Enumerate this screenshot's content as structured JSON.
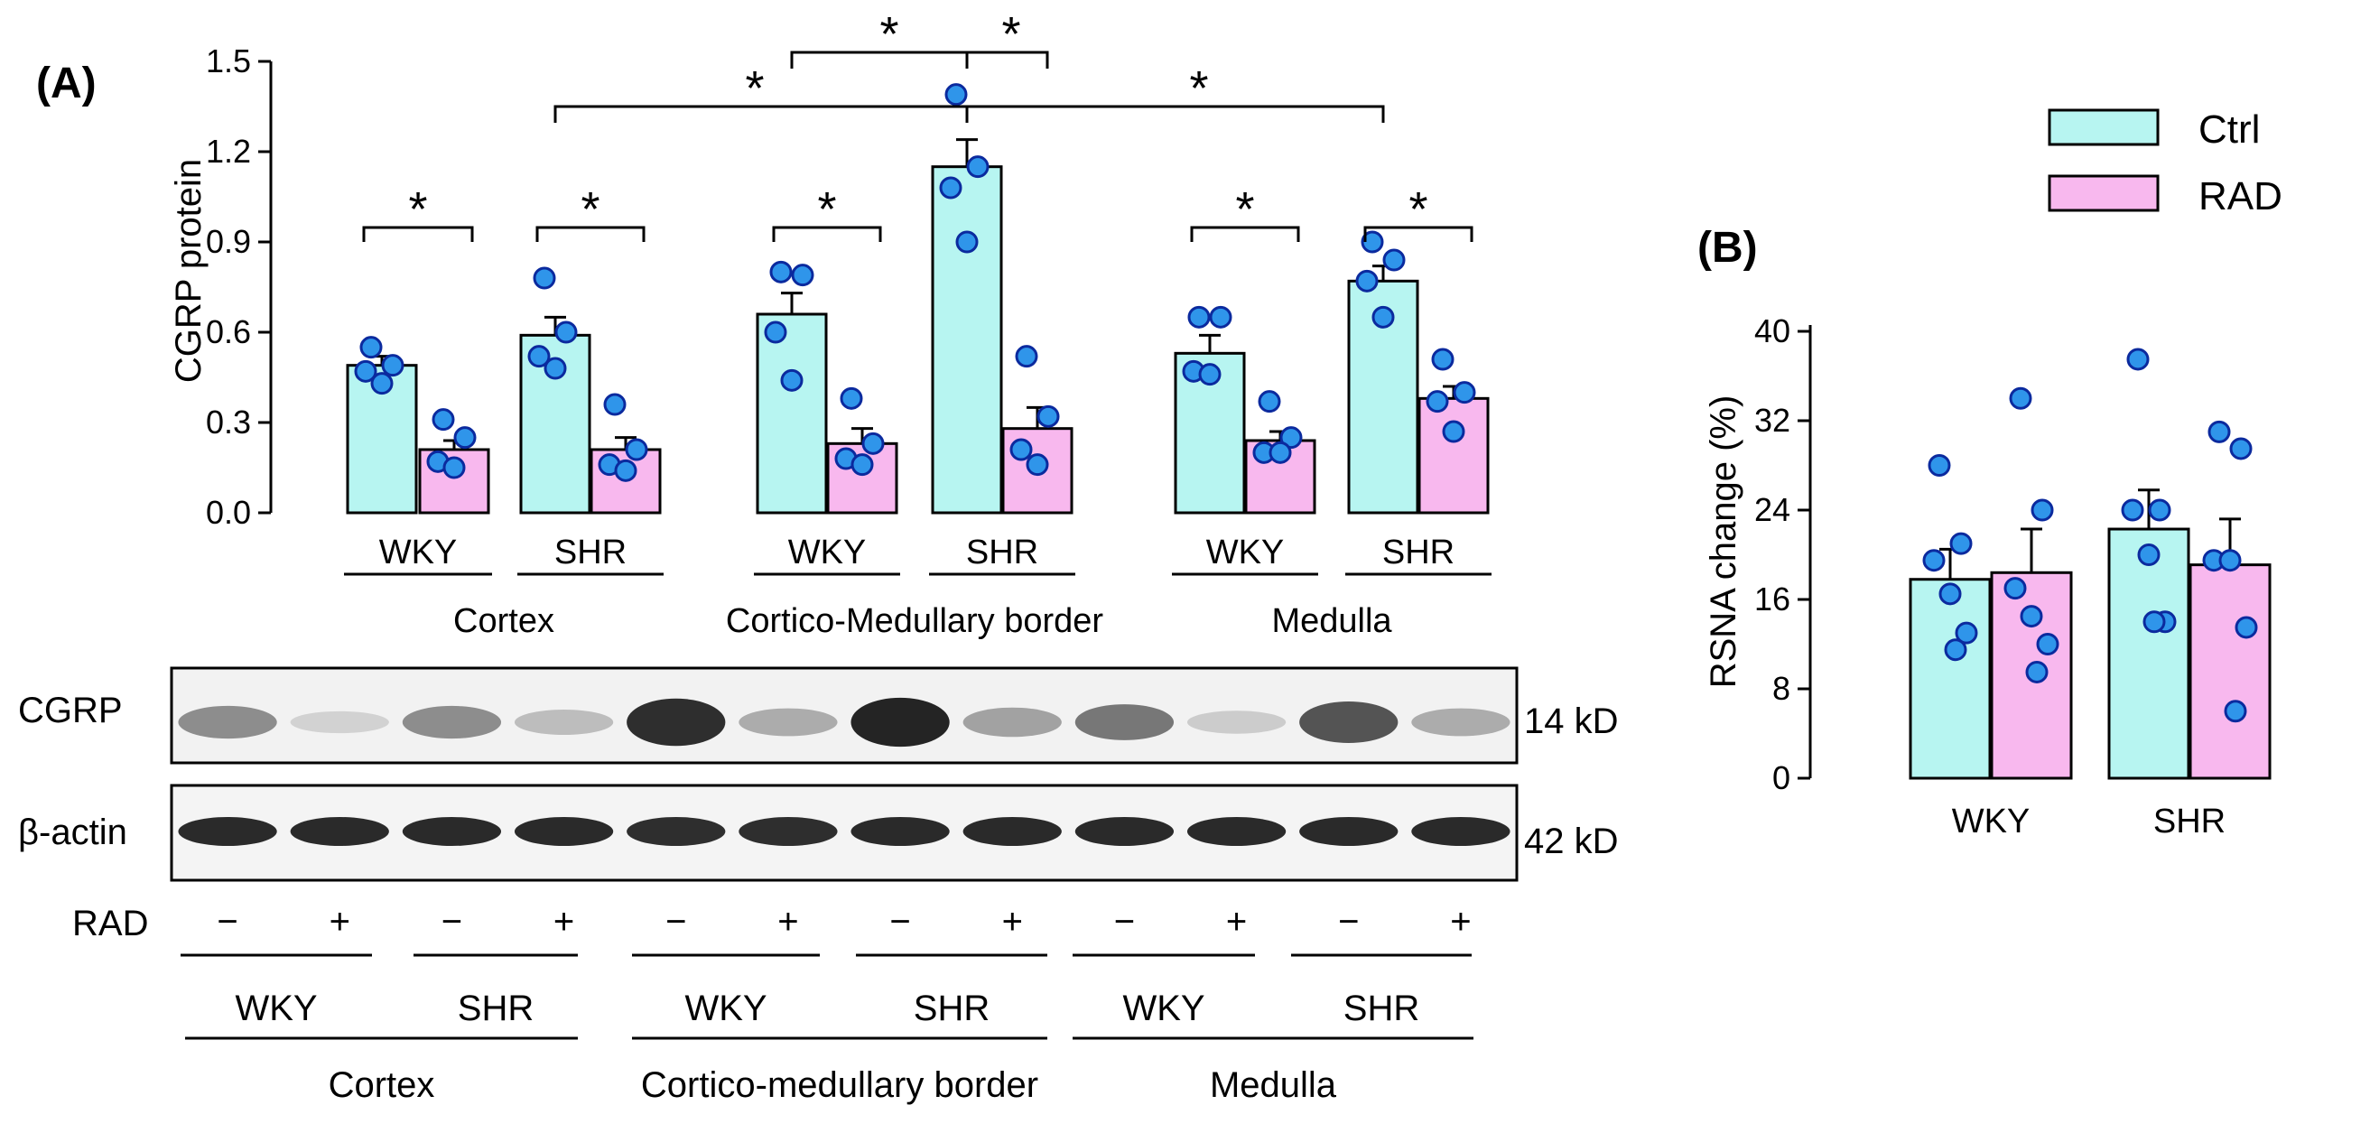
{
  "colors": {
    "ctrl": "#b7f5f1",
    "rad": "#f8b8ee",
    "dot": "#2f95ea",
    "dot_edge": "#0b2a9e",
    "line": "#000000"
  },
  "legend": [
    {
      "label": "Ctrl",
      "color": "#b7f5f1"
    },
    {
      "label": "RAD",
      "color": "#f8b8ee"
    }
  ],
  "chart_data": [
    {
      "panel": "(A)",
      "type": "bar",
      "ylabel": "CGRP protein",
      "ylim": [
        0,
        1.5
      ],
      "yticks": [
        "0.0",
        "0.3",
        "0.6",
        "0.9",
        "1.2",
        "1.5"
      ],
      "regions": [
        {
          "name": "Cortex",
          "strains": [
            {
              "name": "WKY",
              "ctrl": {
                "mean": 0.49,
                "sem": 0.03,
                "points": [
                  0.55,
                  0.49,
                  0.47,
                  0.43
                ]
              },
              "rad": {
                "mean": 0.21,
                "sem": 0.03,
                "points": [
                  0.31,
                  0.25,
                  0.17,
                  0.15
                ]
              }
            },
            {
              "name": "SHR",
              "ctrl": {
                "mean": 0.59,
                "sem": 0.06,
                "points": [
                  0.78,
                  0.6,
                  0.52,
                  0.48
                ]
              },
              "rad": {
                "mean": 0.21,
                "sem": 0.04,
                "points": [
                  0.36,
                  0.21,
                  0.16,
                  0.14
                ]
              }
            }
          ]
        },
        {
          "name": "Cortico-Medullary border",
          "strains": [
            {
              "name": "WKY",
              "ctrl": {
                "mean": 0.66,
                "sem": 0.07,
                "points": [
                  0.8,
                  0.79,
                  0.6,
                  0.44
                ]
              },
              "rad": {
                "mean": 0.23,
                "sem": 0.05,
                "points": [
                  0.38,
                  0.23,
                  0.18,
                  0.16
                ]
              }
            },
            {
              "name": "SHR",
              "ctrl": {
                "mean": 1.15,
                "sem": 0.09,
                "points": [
                  1.39,
                  1.15,
                  1.08,
                  0.9
                ]
              },
              "rad": {
                "mean": 0.28,
                "sem": 0.07,
                "points": [
                  0.52,
                  0.32,
                  0.21,
                  0.16
                ]
              }
            }
          ]
        },
        {
          "name": "Medulla",
          "strains": [
            {
              "name": "WKY",
              "ctrl": {
                "mean": 0.53,
                "sem": 0.06,
                "points": [
                  0.65,
                  0.65,
                  0.47,
                  0.46
                ]
              },
              "rad": {
                "mean": 0.24,
                "sem": 0.03,
                "points": [
                  0.37,
                  0.25,
                  0.2,
                  0.2
                ]
              }
            },
            {
              "name": "SHR",
              "ctrl": {
                "mean": 0.77,
                "sem": 0.05,
                "points": [
                  0.9,
                  0.84,
                  0.77,
                  0.65
                ]
              },
              "rad": {
                "mean": 0.38,
                "sem": 0.04,
                "points": [
                  0.51,
                  0.4,
                  0.37,
                  0.27
                ]
              }
            }
          ]
        }
      ],
      "significance": "*"
    },
    {
      "panel": "(B)",
      "type": "bar",
      "ylabel": "RSNA change (%)",
      "ylim": [
        0,
        40
      ],
      "yticks": [
        "0",
        "8",
        "16",
        "24",
        "32",
        "40"
      ],
      "groups": [
        {
          "name": "WKY",
          "ctrl": {
            "mean": 17.8,
            "sem": 2.7,
            "points": [
              28.0,
              21.0,
              19.5,
              16.5,
              13.0,
              11.5
            ]
          },
          "rad": {
            "mean": 18.4,
            "sem": 3.9,
            "points": [
              34.0,
              24.0,
              17.0,
              14.5,
              12.0,
              9.5
            ]
          }
        },
        {
          "name": "SHR",
          "ctrl": {
            "mean": 22.3,
            "sem": 3.5,
            "points": [
              37.5,
              24.0,
              24.0,
              20.0,
              14.0,
              14.0
            ]
          },
          "rad": {
            "mean": 19.1,
            "sem": 4.1,
            "points": [
              31.0,
              29.5,
              19.5,
              19.5,
              13.5,
              6.0
            ]
          }
        }
      ]
    }
  ],
  "blot": {
    "bands": [
      {
        "label": "CGRP",
        "size": "14 kD",
        "intensities": [
          0.45,
          0.12,
          0.45,
          0.22,
          0.9,
          0.3,
          0.95,
          0.35,
          0.55,
          0.15,
          0.72,
          0.3
        ]
      },
      {
        "label": "β-actin",
        "size": "42 kD",
        "intensities": [
          0.92,
          0.92,
          0.92,
          0.92,
          0.9,
          0.9,
          0.92,
          0.92,
          0.92,
          0.92,
          0.92,
          0.92
        ]
      }
    ],
    "rad_label": "RAD",
    "rad_signs": [
      "−",
      "+",
      "−",
      "+",
      "−",
      "+",
      "−",
      "+",
      "−",
      "+",
      "−",
      "+"
    ],
    "strain_labels": [
      "WKY",
      "SHR",
      "WKY",
      "SHR",
      "WKY",
      "SHR"
    ],
    "region_labels": [
      "Cortex",
      "Cortico-medullary border",
      "Medulla"
    ]
  }
}
